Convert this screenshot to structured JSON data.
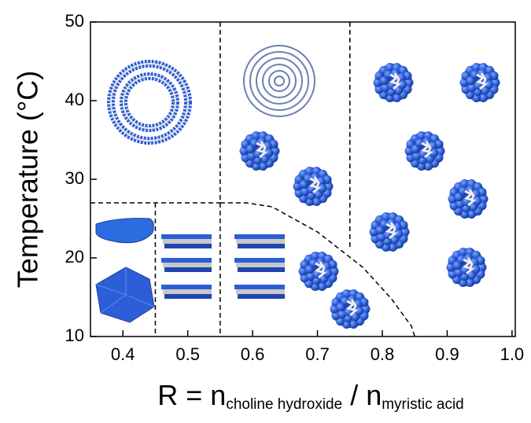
{
  "chart_data": {
    "type": "phase_diagram",
    "y_label": "Temperature (°C)",
    "x_label": {
      "main": "R = n",
      "sub": "choline hydroxide",
      "main2": " / n",
      "sub2": "myristic acid"
    },
    "xlim": [
      0.35,
      1.005
    ],
    "ylim": [
      10,
      50
    ],
    "xticks": [
      0.4,
      0.5,
      0.6,
      0.7,
      0.8,
      0.9,
      {
        "value": 1.0,
        "label": "1.0"
      }
    ],
    "yticks": [
      10,
      20,
      30,
      40,
      50
    ],
    "boundary_color": "#000000",
    "boundaries": [
      {
        "x": [
          0.55,
          0.55
        ],
        "y": [
          50,
          10
        ]
      },
      {
        "x": [
          0.75,
          0.75
        ],
        "y": [
          50,
          21
        ]
      },
      {
        "x": [
          0.35,
          0.55
        ],
        "y": [
          27,
          27
        ]
      },
      {
        "x": [
          0.45,
          0.45
        ],
        "y": [
          27,
          10
        ]
      },
      {
        "x": [
          0.55,
          0.59,
          0.63,
          0.7,
          0.77,
          0.814,
          0.845,
          0.85
        ],
        "y": [
          27,
          27,
          26.5,
          23.3,
          18.8,
          14.8,
          11.3,
          10
        ]
      }
    ]
  }
}
